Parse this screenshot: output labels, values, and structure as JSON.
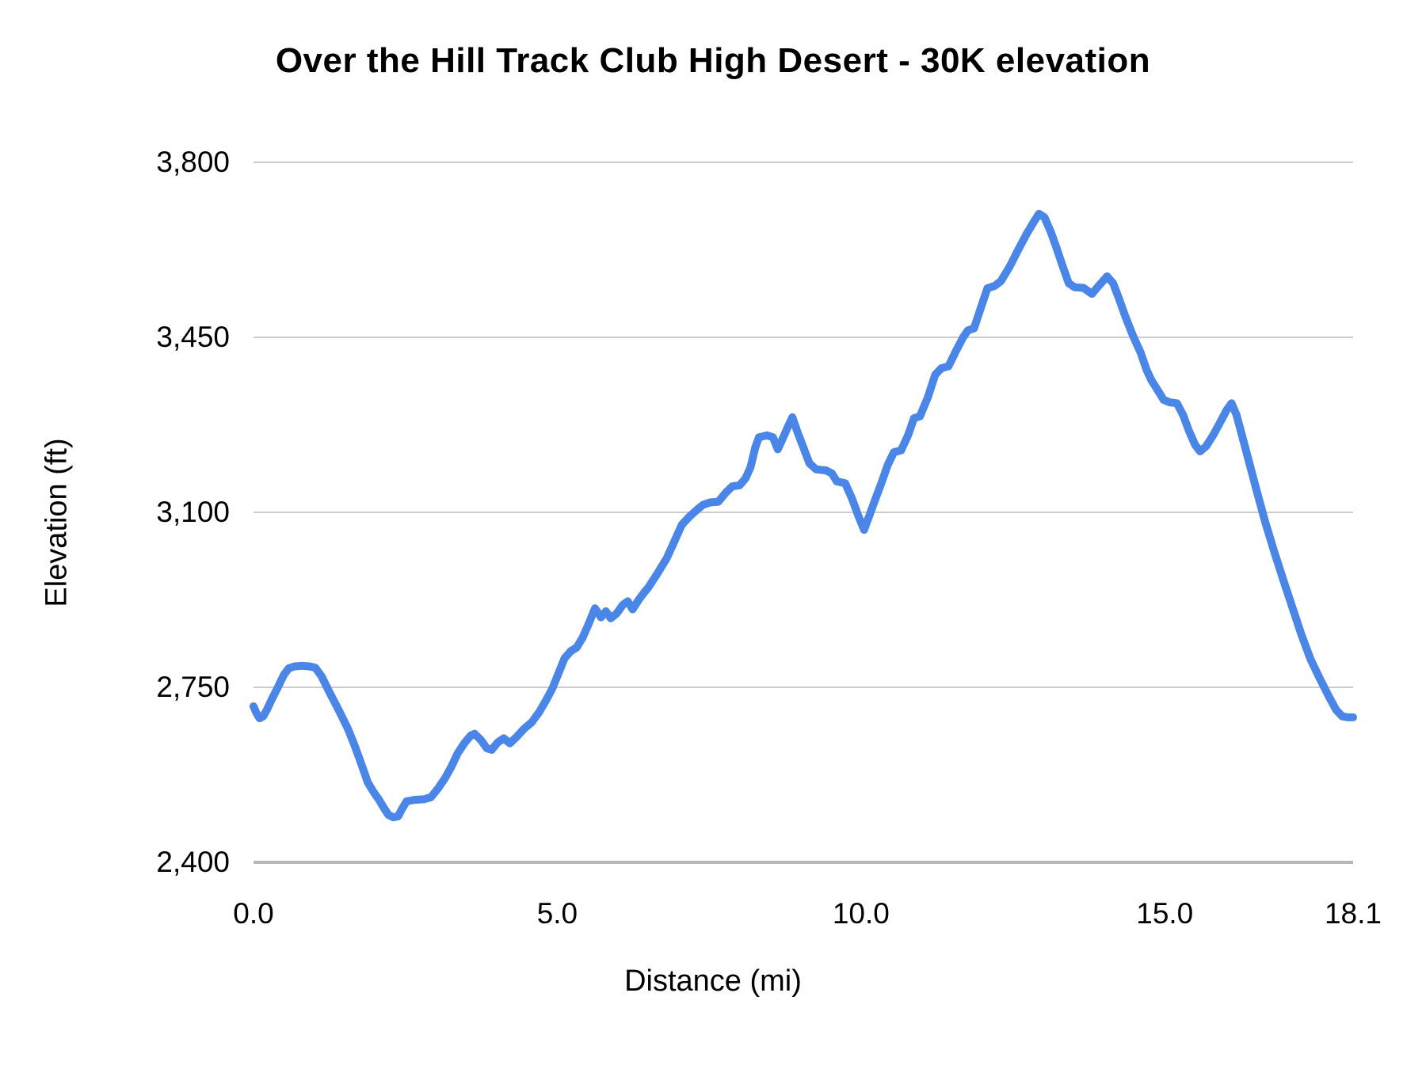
{
  "page": {
    "background": "#ffffff"
  },
  "styles": {
    "gridline_color": "#cccccc",
    "baseline_color": "#b7b7b7",
    "title_color": "#000000",
    "tick_color": "#000000",
    "series_color": "#4a86e8"
  },
  "chart_data": {
    "type": "line",
    "title": "Over the Hill Track Club High Desert - 30K elevation",
    "xlabel": "Distance (mi)",
    "ylabel": "Elevation (ft)",
    "xlim": [
      0,
      18.1
    ],
    "ylim": [
      2400,
      3800
    ],
    "grid": "horizontal",
    "legend": "none",
    "x_ticks": [
      {
        "value": 0,
        "label": "0.0"
      },
      {
        "value": 5,
        "label": "5.0"
      },
      {
        "value": 10,
        "label": "10.0"
      },
      {
        "value": 15,
        "label": "15.0"
      },
      {
        "value": 18.1,
        "label": "18.1"
      }
    ],
    "y_ticks": [
      {
        "value": 2400,
        "label": "2,400"
      },
      {
        "value": 2750,
        "label": "2,750"
      },
      {
        "value": 3100,
        "label": "3,100"
      },
      {
        "value": 3450,
        "label": "3,450"
      },
      {
        "value": 3800,
        "label": "3,800"
      }
    ],
    "series": [
      {
        "name": "Elevation (ft)",
        "color": "#4a86e8",
        "line_width": 10,
        "points": [
          [
            0.0,
            2712
          ],
          [
            0.05,
            2698
          ],
          [
            0.1,
            2688
          ],
          [
            0.16,
            2692
          ],
          [
            0.22,
            2705
          ],
          [
            0.3,
            2726
          ],
          [
            0.4,
            2750
          ],
          [
            0.5,
            2775
          ],
          [
            0.58,
            2788
          ],
          [
            0.68,
            2792
          ],
          [
            0.8,
            2793
          ],
          [
            0.92,
            2792
          ],
          [
            1.02,
            2789
          ],
          [
            1.12,
            2772
          ],
          [
            1.25,
            2740
          ],
          [
            1.4,
            2705
          ],
          [
            1.55,
            2668
          ],
          [
            1.66,
            2635
          ],
          [
            1.78,
            2595
          ],
          [
            1.88,
            2560
          ],
          [
            1.98,
            2540
          ],
          [
            2.06,
            2526
          ],
          [
            2.14,
            2510
          ],
          [
            2.22,
            2495
          ],
          [
            2.3,
            2490
          ],
          [
            2.38,
            2492
          ],
          [
            2.45,
            2508
          ],
          [
            2.52,
            2522
          ],
          [
            2.65,
            2525
          ],
          [
            2.8,
            2526
          ],
          [
            2.92,
            2530
          ],
          [
            3.04,
            2548
          ],
          [
            3.15,
            2568
          ],
          [
            3.26,
            2592
          ],
          [
            3.36,
            2618
          ],
          [
            3.48,
            2640
          ],
          [
            3.58,
            2654
          ],
          [
            3.64,
            2657
          ],
          [
            3.74,
            2645
          ],
          [
            3.84,
            2628
          ],
          [
            3.92,
            2625
          ],
          [
            4.02,
            2640
          ],
          [
            4.12,
            2648
          ],
          [
            4.22,
            2638
          ],
          [
            4.34,
            2652
          ],
          [
            4.46,
            2668
          ],
          [
            4.58,
            2680
          ],
          [
            4.7,
            2700
          ],
          [
            4.82,
            2725
          ],
          [
            4.92,
            2748
          ],
          [
            5.02,
            2778
          ],
          [
            5.12,
            2808
          ],
          [
            5.22,
            2822
          ],
          [
            5.32,
            2830
          ],
          [
            5.42,
            2850
          ],
          [
            5.52,
            2878
          ],
          [
            5.62,
            2908
          ],
          [
            5.72,
            2890
          ],
          [
            5.8,
            2902
          ],
          [
            5.88,
            2888
          ],
          [
            5.98,
            2898
          ],
          [
            6.08,
            2915
          ],
          [
            6.16,
            2922
          ],
          [
            6.24,
            2906
          ],
          [
            6.34,
            2925
          ],
          [
            6.42,
            2938
          ],
          [
            6.5,
            2950
          ],
          [
            6.65,
            2978
          ],
          [
            6.8,
            3008
          ],
          [
            6.92,
            3040
          ],
          [
            7.05,
            3075
          ],
          [
            7.18,
            3092
          ],
          [
            7.3,
            3105
          ],
          [
            7.4,
            3115
          ],
          [
            7.52,
            3120
          ],
          [
            7.65,
            3121
          ],
          [
            7.78,
            3140
          ],
          [
            7.88,
            3152
          ],
          [
            8.0,
            3154
          ],
          [
            8.1,
            3168
          ],
          [
            8.18,
            3190
          ],
          [
            8.26,
            3230
          ],
          [
            8.32,
            3250
          ],
          [
            8.45,
            3254
          ],
          [
            8.55,
            3250
          ],
          [
            8.63,
            3226
          ],
          [
            8.72,
            3250
          ],
          [
            8.8,
            3272
          ],
          [
            8.87,
            3290
          ],
          [
            8.95,
            3262
          ],
          [
            9.05,
            3230
          ],
          [
            9.15,
            3198
          ],
          [
            9.26,
            3186
          ],
          [
            9.42,
            3184
          ],
          [
            9.52,
            3178
          ],
          [
            9.6,
            3162
          ],
          [
            9.74,
            3158
          ],
          [
            9.85,
            3128
          ],
          [
            9.95,
            3095
          ],
          [
            10.05,
            3065
          ],
          [
            10.15,
            3098
          ],
          [
            10.24,
            3128
          ],
          [
            10.34,
            3160
          ],
          [
            10.44,
            3195
          ],
          [
            10.54,
            3220
          ],
          [
            10.66,
            3224
          ],
          [
            10.78,
            3256
          ],
          [
            10.87,
            3288
          ],
          [
            10.97,
            3292
          ],
          [
            11.1,
            3330
          ],
          [
            11.22,
            3375
          ],
          [
            11.32,
            3388
          ],
          [
            11.44,
            3392
          ],
          [
            11.56,
            3422
          ],
          [
            11.68,
            3450
          ],
          [
            11.76,
            3464
          ],
          [
            11.86,
            3468
          ],
          [
            11.96,
            3505
          ],
          [
            12.08,
            3548
          ],
          [
            12.2,
            3553
          ],
          [
            12.3,
            3562
          ],
          [
            12.45,
            3592
          ],
          [
            12.6,
            3628
          ],
          [
            12.74,
            3660
          ],
          [
            12.85,
            3682
          ],
          [
            12.93,
            3697
          ],
          [
            13.02,
            3690
          ],
          [
            13.12,
            3662
          ],
          [
            13.22,
            3628
          ],
          [
            13.32,
            3592
          ],
          [
            13.42,
            3558
          ],
          [
            13.52,
            3550
          ],
          [
            13.66,
            3549
          ],
          [
            13.8,
            3537
          ],
          [
            13.92,
            3554
          ],
          [
            14.05,
            3572
          ],
          [
            14.15,
            3558
          ],
          [
            14.25,
            3526
          ],
          [
            14.35,
            3492
          ],
          [
            14.48,
            3452
          ],
          [
            14.6,
            3420
          ],
          [
            14.7,
            3385
          ],
          [
            14.78,
            3364
          ],
          [
            14.88,
            3345
          ],
          [
            14.98,
            3325
          ],
          [
            15.08,
            3320
          ],
          [
            15.2,
            3318
          ],
          [
            15.3,
            3295
          ],
          [
            15.4,
            3262
          ],
          [
            15.5,
            3235
          ],
          [
            15.58,
            3222
          ],
          [
            15.68,
            3232
          ],
          [
            15.8,
            3255
          ],
          [
            15.92,
            3282
          ],
          [
            16.02,
            3305
          ],
          [
            16.1,
            3318
          ],
          [
            16.18,
            3295
          ],
          [
            16.28,
            3250
          ],
          [
            16.4,
            3195
          ],
          [
            16.52,
            3140
          ],
          [
            16.65,
            3082
          ],
          [
            16.8,
            3022
          ],
          [
            16.95,
            2965
          ],
          [
            17.1,
            2910
          ],
          [
            17.25,
            2855
          ],
          [
            17.4,
            2806
          ],
          [
            17.55,
            2768
          ],
          [
            17.7,
            2732
          ],
          [
            17.82,
            2705
          ],
          [
            17.92,
            2692
          ],
          [
            18.02,
            2690
          ],
          [
            18.1,
            2690
          ]
        ]
      }
    ]
  }
}
